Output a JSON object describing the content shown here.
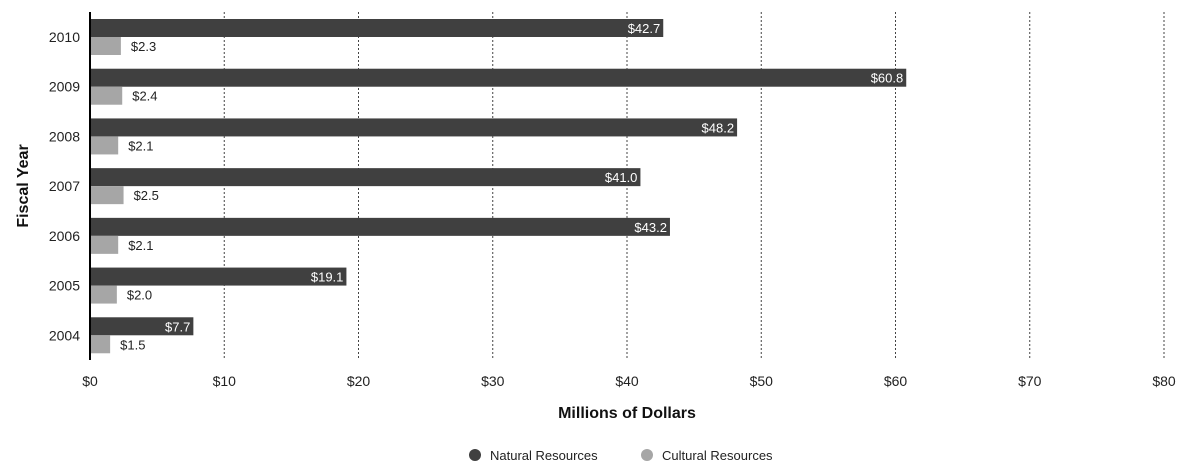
{
  "chart_data": {
    "type": "bar",
    "orientation": "horizontal",
    "categories": [
      "2010",
      "2009",
      "2008",
      "2007",
      "2006",
      "2005",
      "2004"
    ],
    "series": [
      {
        "name": "Natural Resources",
        "color": "#404040",
        "values": [
          42.7,
          60.8,
          48.2,
          41.0,
          43.2,
          19.1,
          7.7
        ],
        "labels": [
          "$42.7",
          "$60.8",
          "$48.2",
          "$41.0",
          "$43.2",
          "$19.1",
          "$7.7"
        ]
      },
      {
        "name": "Cultural Resources",
        "color": "#a6a6a6",
        "values": [
          2.3,
          2.4,
          2.1,
          2.5,
          2.1,
          2.0,
          1.5
        ],
        "labels": [
          "$2.3",
          "$2.4",
          "$2.1",
          "$2.5",
          "$2.1",
          "$2.0",
          "$1.5"
        ]
      }
    ],
    "xlabel": "Millions of Dollars",
    "ylabel": "Fiscal Year",
    "xlim": [
      0,
      80
    ],
    "xticks": [
      0,
      10,
      20,
      30,
      40,
      50,
      60,
      70,
      80
    ],
    "xtick_labels": [
      "$0",
      "$10",
      "$20",
      "$30",
      "$40",
      "$50",
      "$60",
      "$70",
      "$80"
    ],
    "grid": "vertical dotted",
    "legend_position": "bottom-center"
  }
}
